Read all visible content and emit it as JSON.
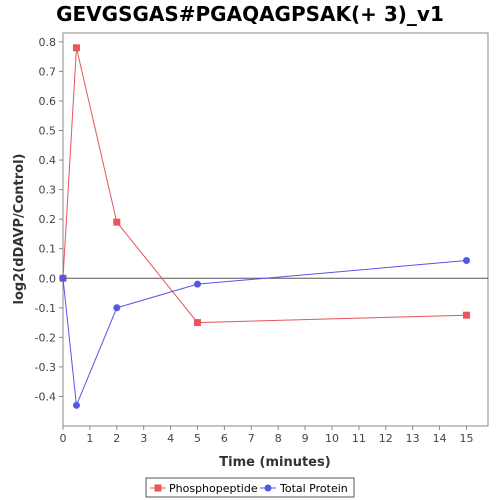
{
  "chart_data": {
    "type": "line",
    "title": "GEVGSGAS#PGAQAGPSAK(+ 3)_v1",
    "xlabel": "Time (minutes)",
    "ylabel": "log2(dDAVP/Control)",
    "xlim": [
      0,
      15.8
    ],
    "ylim": [
      -0.5,
      0.83
    ],
    "xticks": [
      0,
      1,
      2,
      3,
      4,
      5,
      6,
      7,
      8,
      9,
      10,
      11,
      12,
      13,
      14,
      15
    ],
    "yticks": [
      -0.4,
      -0.3,
      -0.2,
      -0.1,
      0.0,
      0.1,
      0.2,
      0.3,
      0.4,
      0.5,
      0.6,
      0.7,
      0.8
    ],
    "ytick_labels": [
      "-0.4",
      "-0.3",
      "-0.2",
      "-0.1",
      "0.0",
      "0.1",
      "0.2",
      "0.3",
      "0.4",
      "0.5",
      "0.6",
      "0.7",
      "0.8"
    ],
    "grid": false,
    "zero_line": true,
    "legend_position": "bottom",
    "series": [
      {
        "name": "Phosphopeptide",
        "color": "#e8555a",
        "marker": "square",
        "x": [
          0,
          0.5,
          2,
          5,
          15
        ],
        "y": [
          0.0,
          0.78,
          0.19,
          -0.15,
          -0.125
        ]
      },
      {
        "name": "Total Protein",
        "color": "#5555e8",
        "marker": "circle",
        "x": [
          0,
          0.5,
          2,
          5,
          15
        ],
        "y": [
          0.0,
          -0.43,
          -0.1,
          -0.02,
          0.06
        ]
      }
    ]
  }
}
